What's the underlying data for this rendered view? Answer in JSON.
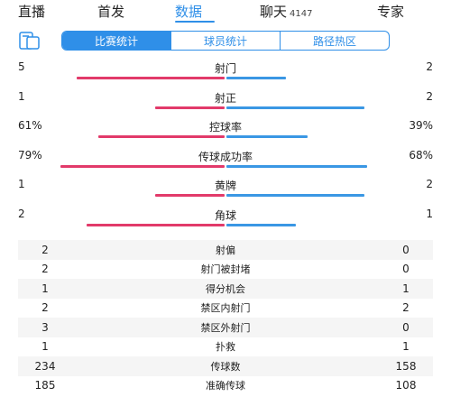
{
  "top_tabs": [
    {
      "label": "直播"
    },
    {
      "label": "首发"
    },
    {
      "label": "数据",
      "active": true
    },
    {
      "label": "聊天",
      "count": "4147"
    },
    {
      "label": "专家"
    }
  ],
  "sub_tabs": [
    {
      "label": "比赛统计",
      "active": true
    },
    {
      "label": "球员统计"
    },
    {
      "label": "路径热区"
    }
  ],
  "bar_stats": [
    {
      "label": "射门",
      "left": "5",
      "right": "2",
      "left_share": 0.714,
      "right_share": 0.286
    },
    {
      "label": "射正",
      "left": "1",
      "right": "2",
      "left_share": 0.333,
      "right_share": 0.667
    },
    {
      "label": "控球率",
      "left": "61%",
      "right": "39%",
      "left_share": 0.61,
      "right_share": 0.39
    },
    {
      "label": "传球成功率",
      "left": "79%",
      "right": "68%",
      "left_share": 0.79,
      "right_share": 0.68
    },
    {
      "label": "黄牌",
      "left": "1",
      "right": "2",
      "left_share": 0.333,
      "right_share": 0.667
    },
    {
      "label": "角球",
      "left": "2",
      "right": "1",
      "left_share": 0.667,
      "right_share": 0.333
    }
  ],
  "table_stats": [
    {
      "label": "射偏",
      "left": "2",
      "right": "0"
    },
    {
      "label": "射门被封堵",
      "left": "2",
      "right": "0"
    },
    {
      "label": "得分机会",
      "left": "1",
      "right": "1"
    },
    {
      "label": "禁区内射门",
      "left": "2",
      "right": "2"
    },
    {
      "label": "禁区外射门",
      "left": "3",
      "right": "0"
    },
    {
      "label": "扑救",
      "left": "1",
      "right": "1"
    },
    {
      "label": "传球数",
      "left": "234",
      "right": "158"
    },
    {
      "label": "准确传球",
      "left": "185",
      "right": "108"
    }
  ],
  "colors": {
    "accent": "#2f8fe8",
    "home": "#e23a6a",
    "away": "#3a97e4"
  }
}
